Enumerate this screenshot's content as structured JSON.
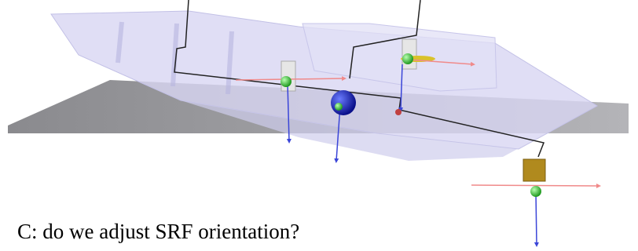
{
  "caption": "C: do we adjust SRF orientation?"
}
